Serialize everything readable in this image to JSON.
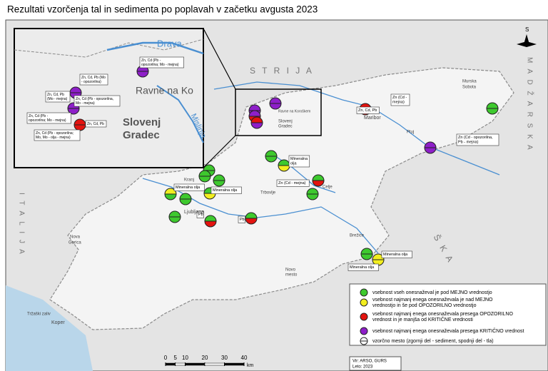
{
  "title": "Rezultati vzorčenja tal in sedimenta po poplavah v začetku avgusta 2023",
  "colors": {
    "sea": "#b9d6ea",
    "land": "#e4e4e4",
    "slovenia": "#f4f4f4",
    "border": "#8a8a8a",
    "river": "#4a8fd1"
  },
  "legend": [
    {
      "color": "#3ec92e",
      "lines": [
        "vsebnost vseh onesnaževal je pod MEJNO vrednostjo"
      ]
    },
    {
      "color": "#f2ee1f",
      "lines": [
        "vsebnost najmanj enega onesnaževala je nad MEJNO",
        "vrednostjo in še pod OPOZORILNO vrednostjo"
      ]
    },
    {
      "color": "#e3130f",
      "lines": [
        "vsebnost najmanj enega onesnaževala presega OPOZORILNO",
        "vrednost in je manjša od KRITIČNE vrednosti"
      ]
    },
    {
      "color": "#8e1fc9",
      "lines": [
        "vsebnost najmanj enega onesnaževala presega KRITIČNO vrednost"
      ]
    },
    {
      "color": "#ffffff",
      "lines": [
        "vzorčno mesto (zgornji del - sediment, spodnji del - tla)"
      ]
    }
  ],
  "points": [
    {
      "top": "#8e1fc9",
      "bottom": "#8e1fc9"
    },
    {
      "top": "#8e1fc9",
      "bottom": "#8e1fc9"
    },
    {
      "top": "#8e1fc9",
      "bottom": "#e3130f"
    },
    {
      "top": "#e3130f",
      "bottom": "#8e1fc9"
    },
    {
      "top": "#e3130f",
      "bottom": "#e3130f"
    },
    {
      "top": "#3ec92e",
      "bottom": "#3ec92e"
    },
    {
      "top": "#8e1fc9",
      "bottom": "#8e1fc9"
    },
    {
      "top": "#3ec92e",
      "bottom": "#3ec92e"
    },
    {
      "top": "#3ec92e",
      "bottom": "#f2ee1f"
    },
    {
      "top": "#3ec92e",
      "bottom": "#e3130f"
    },
    {
      "top": "#3ec92e",
      "bottom": "#3ec92e"
    },
    {
      "top": "#3ec92e",
      "bottom": "#3ec92e"
    },
    {
      "top": "#3ec92e",
      "bottom": "#3ec92e"
    },
    {
      "top": "#3ec92e",
      "bottom": "#3ec92e"
    },
    {
      "top": "#f2ee1f",
      "bottom": "#3ec92e"
    },
    {
      "top": "#3ec92e",
      "bottom": "#3ec92e"
    },
    {
      "top": "#3ec92e",
      "bottom": "#f2ee1f"
    },
    {
      "top": "#3ec92e",
      "bottom": "#3ec92e"
    },
    {
      "top": "#3ec92e",
      "bottom": "#e3130f"
    },
    {
      "top": "#3ec92e",
      "bottom": "#e3130f"
    },
    {
      "top": "#3ec92e",
      "bottom": "#3ec92e"
    },
    {
      "top": "#f2ee1f",
      "bottom": "#f2ee1f"
    },
    {
      "top": "#8e1fc9",
      "bottom": "#8e1fc9"
    },
    {
      "top": "#8e1fc9",
      "bottom": "#8e1fc9"
    },
    {
      "top": "#8e1fc9",
      "bottom": "#8e1fc9"
    },
    {
      "top": "#e3130f",
      "bottom": "#e3130f"
    }
  ],
  "callouts": [
    {
      "lines": [
        "Zn (Cd -",
        "mejna)"
      ]
    },
    {
      "lines": [
        "Zn, Cd, Pb"
      ]
    },
    {
      "lines": [
        "Zn (Cd - opozorilna,",
        "Pb - mejna)"
      ]
    },
    {
      "lines": [
        "Mineralna",
        "olja"
      ]
    },
    {
      "lines": [
        "Zn (Cd - mejna)"
      ]
    },
    {
      "lines": [
        "Mineralna olja"
      ]
    },
    {
      "lines": [
        "Mineralna olja"
      ]
    },
    {
      "lines": [
        "Pb"
      ]
    },
    {
      "lines": [
        "Pb"
      ]
    },
    {
      "lines": [
        "Mineralna olja"
      ]
    },
    {
      "lines": [
        "Mineralna olja"
      ]
    },
    {
      "lines": [
        "Zn, Cd (Pb -",
        "opozorilna; Mo - mejna)"
      ]
    },
    {
      "lines": [
        "Zn, Cd, Pb (Mo",
        "- opozorilna)"
      ]
    },
    {
      "lines": [
        "Zn, Cd, Pb",
        "(Mo - mejna)"
      ]
    },
    {
      "lines": [
        "Zn, Cd (Pb - opozorilna,",
        "Mo - mejna)"
      ]
    },
    {
      "lines": [
        "Zn, Cd (Pb -",
        "opozorilna; Mo - mejna)"
      ]
    },
    {
      "lines": [
        "Zn, Cd, Pb"
      ]
    },
    {
      "lines": [
        "Zn, Cd (Pb - opozorilna;",
        "Mo, Mo - olja - mejna)"
      ]
    }
  ],
  "places": [
    "Drava",
    "Mislinja",
    "Ravne na Ko",
    "Slovenj",
    "Gradec",
    "Maribor",
    "Celje",
    "Ljubljana",
    "Koper",
    "Nova",
    "Gorica",
    "Kranj",
    "Murska",
    "Sobota",
    "Trbovlje",
    "Novo",
    "mesto",
    "Tržaški zaliv",
    "Ravne na Koroškem",
    "Slovenj",
    "Gradec",
    "Ptuj",
    "Brežice"
  ],
  "countries": [
    "S T R I J A",
    "M A D Ž A R S K A",
    "I T A L I J A",
    "Š K A"
  ],
  "scale": {
    "ticks": [
      0,
      5,
      10,
      20,
      30,
      40
    ],
    "unit": "km"
  },
  "north": "S",
  "source": [
    "Vir: ARSO, GURS",
    "Leto: 2023"
  ]
}
